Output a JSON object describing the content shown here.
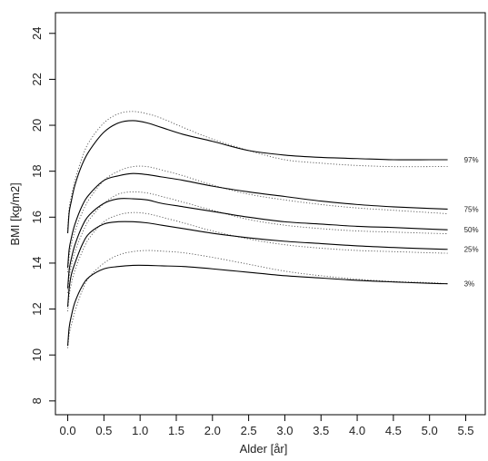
{
  "chart_data": {
    "type": "line",
    "title": "",
    "xlabel": "Alder [år]",
    "ylabel": "BMI [kg/m2]",
    "xlim": [
      -0.17,
      5.77
    ],
    "ylim": [
      7.4,
      24.9
    ],
    "x_ticks": [
      0.0,
      0.5,
      1.0,
      1.5,
      2.0,
      2.5,
      3.0,
      3.5,
      4.0,
      4.5,
      5.0,
      5.5
    ],
    "x_tick_labels": [
      "0.0",
      "0.5",
      "1.0",
      "1.5",
      "2.0",
      "2.5",
      "3.0",
      "3.5",
      "4.0",
      "4.5",
      "5.0",
      "5.5"
    ],
    "y_ticks": [
      8,
      10,
      12,
      14,
      16,
      18,
      20,
      22,
      24
    ],
    "y_tick_labels": [
      "8",
      "10",
      "12",
      "14",
      "16",
      "18",
      "20",
      "22",
      "24"
    ],
    "grid": false,
    "legend": "none",
    "x": [
      0.0,
      0.02,
      0.05,
      0.1,
      0.2,
      0.3,
      0.5,
      0.7,
      0.9,
      1.1,
      1.3,
      1.6,
      2.0,
      2.5,
      3.0,
      3.5,
      4.0,
      4.5,
      5.0,
      5.25
    ],
    "series": [
      {
        "name": "97%",
        "style": "solid",
        "color": "#000000",
        "values": [
          15.3,
          16.2,
          16.7,
          17.4,
          18.3,
          18.9,
          19.7,
          20.1,
          20.2,
          20.1,
          19.9,
          19.6,
          19.3,
          18.9,
          18.7,
          18.6,
          18.55,
          18.5,
          18.5,
          18.5
        ]
      },
      {
        "name": "75%",
        "style": "solid",
        "color": "#000000",
        "values": [
          13.8,
          14.6,
          15.1,
          15.7,
          16.5,
          17.0,
          17.6,
          17.8,
          17.9,
          17.85,
          17.75,
          17.6,
          17.35,
          17.1,
          16.9,
          16.7,
          16.55,
          16.45,
          16.38,
          16.35
        ]
      },
      {
        "name": "50%",
        "style": "solid",
        "color": "#000000",
        "values": [
          12.9,
          13.7,
          14.2,
          14.8,
          15.6,
          16.1,
          16.6,
          16.8,
          16.8,
          16.75,
          16.6,
          16.45,
          16.25,
          16.0,
          15.8,
          15.7,
          15.6,
          15.55,
          15.48,
          15.45
        ]
      },
      {
        "name": "25%",
        "style": "solid",
        "color": "#000000",
        "values": [
          12.1,
          12.9,
          13.5,
          14.0,
          14.8,
          15.3,
          15.7,
          15.8,
          15.8,
          15.75,
          15.65,
          15.5,
          15.3,
          15.1,
          14.95,
          14.85,
          14.75,
          14.68,
          14.62,
          14.6
        ]
      },
      {
        "name": "3%",
        "style": "solid",
        "color": "#000000",
        "values": [
          10.4,
          11.2,
          11.7,
          12.3,
          13.0,
          13.4,
          13.75,
          13.85,
          13.9,
          13.9,
          13.88,
          13.85,
          13.75,
          13.6,
          13.45,
          13.35,
          13.25,
          13.18,
          13.12,
          13.1
        ]
      },
      {
        "style": "dotted",
        "color": "#555555",
        "values": [
          15.5,
          16.4,
          16.9,
          17.6,
          18.6,
          19.3,
          20.1,
          20.5,
          20.6,
          20.5,
          20.3,
          19.9,
          19.4,
          18.9,
          18.5,
          18.35,
          18.25,
          18.2,
          18.2,
          18.2
        ]
      },
      {
        "style": "dotted",
        "color": "#555555",
        "values": [
          13.6,
          14.3,
          14.8,
          15.4,
          16.2,
          16.8,
          17.6,
          18.0,
          18.2,
          18.2,
          18.05,
          17.8,
          17.4,
          17.0,
          16.75,
          16.55,
          16.4,
          16.3,
          16.2,
          16.15
        ]
      },
      {
        "style": "dotted",
        "color": "#555555",
        "values": [
          12.7,
          13.4,
          13.9,
          14.5,
          15.3,
          15.9,
          16.6,
          17.0,
          17.1,
          17.05,
          16.9,
          16.65,
          16.3,
          15.9,
          15.65,
          15.5,
          15.4,
          15.35,
          15.3,
          15.28
        ]
      },
      {
        "style": "dotted",
        "color": "#555555",
        "values": [
          11.9,
          12.6,
          13.1,
          13.7,
          14.5,
          15.1,
          15.8,
          16.1,
          16.2,
          16.15,
          16.0,
          15.75,
          15.4,
          15.05,
          14.8,
          14.65,
          14.55,
          14.5,
          14.45,
          14.43
        ]
      },
      {
        "style": "dotted",
        "color": "#555555",
        "values": [
          10.3,
          10.9,
          11.3,
          11.9,
          12.8,
          13.4,
          14.0,
          14.35,
          14.5,
          14.55,
          14.52,
          14.45,
          14.25,
          13.95,
          13.65,
          13.45,
          13.3,
          13.2,
          13.15,
          13.1
        ]
      }
    ]
  }
}
